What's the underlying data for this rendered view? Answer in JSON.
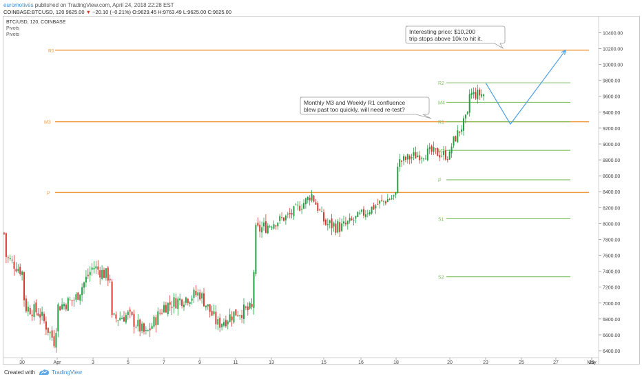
{
  "header": {
    "author": "euromotives",
    "published": " published on TradingView.com, April 24, 2018 22:28 EST",
    "symbol_line_a": "COINBASE:BTCUSD, 120  9625.00 ",
    "symbol_line_arrow": "▼",
    "symbol_line_change": " −20.10 (−0.21%) ",
    "symbol_line_ohlc": "O:9629.45 H:9763.49 L:9625.00 C:9625.00"
  },
  "legend": {
    "symbol": "BTC/USD, 120, COINBASE",
    "indicator_1": "Pivots",
    "indicator_2": "Pivots"
  },
  "annotations": {
    "note_1": [
      "Interesting price: $10,200",
      "trip stops above 10k to hit it."
    ],
    "note_2": [
      "Monthly M3 and Weekly R1 confluence",
      "blew past too quickly, will need re-test?"
    ]
  },
  "footer": {
    "created_with": "Created with",
    "brand": "TradingView"
  },
  "colors": {
    "bull": "#26a045",
    "bear": "#d33b32",
    "monthly_pivot": "#f0993a",
    "weekly_pivot": "#7bbf5d",
    "projection": "#4a9ee8"
  },
  "chart_data": {
    "type": "candlestick",
    "title": "BTC/USD, 120, COINBASE",
    "ylim": [
      6300,
      10600
    ],
    "y_ticks": [
      6400,
      6600,
      6800,
      7000,
      7200,
      7400,
      7600,
      7800,
      8000,
      8200,
      8400,
      8600,
      8800,
      9000,
      9200,
      9400,
      9600,
      9800,
      10000,
      10200,
      10400
    ],
    "x_ticks": [
      "30",
      "Apr",
      "3",
      "5",
      "7",
      "9",
      "11",
      "13",
      "15",
      "16",
      "18",
      "20",
      "23",
      "25",
      "27",
      "29",
      "May"
    ],
    "close_path": [
      {
        "date": "Mar 29",
        "price": 7880
      },
      {
        "date": "Mar 29",
        "price": 7580
      },
      {
        "date": "Mar 30",
        "price": 7400
      },
      {
        "date": "Mar 30",
        "price": 6950
      },
      {
        "date": "Mar 31",
        "price": 6880
      },
      {
        "date": "Apr 1",
        "price": 6500
      },
      {
        "date": "Apr 1",
        "price": 6950
      },
      {
        "date": "Apr 2",
        "price": 7050
      },
      {
        "date": "Apr 3",
        "price": 7460
      },
      {
        "date": "Apr 4",
        "price": 7320
      },
      {
        "date": "Apr 4",
        "price": 6780
      },
      {
        "date": "Apr 5",
        "price": 6850
      },
      {
        "date": "Apr 6",
        "price": 6600
      },
      {
        "date": "Apr 7",
        "price": 6960
      },
      {
        "date": "Apr 8",
        "price": 7050
      },
      {
        "date": "Apr 9",
        "price": 7120
      },
      {
        "date": "Apr 10",
        "price": 6730
      },
      {
        "date": "Apr 11",
        "price": 6880
      },
      {
        "date": "Apr 12",
        "price": 6920
      },
      {
        "date": "Apr 12",
        "price": 7900
      },
      {
        "date": "Apr 13",
        "price": 8000
      },
      {
        "date": "Apr 14",
        "price": 8100
      },
      {
        "date": "Apr 15",
        "price": 8300
      },
      {
        "date": "Apr 15",
        "price": 8370
      },
      {
        "date": "Apr 16",
        "price": 8000
      },
      {
        "date": "Apr 17",
        "price": 7950
      },
      {
        "date": "Apr 18",
        "price": 8100
      },
      {
        "date": "Apr 19",
        "price": 8250
      },
      {
        "date": "Apr 20",
        "price": 8350
      },
      {
        "date": "Apr 20",
        "price": 8750
      },
      {
        "date": "Apr 21",
        "price": 8850
      },
      {
        "date": "Apr 22",
        "price": 8900
      },
      {
        "date": "Apr 23",
        "price": 8850
      },
      {
        "date": "Apr 23",
        "price": 9000
      },
      {
        "date": "Apr 24",
        "price": 9350
      },
      {
        "date": "Apr 24",
        "price": 9625
      }
    ],
    "monthly_pivots": [
      {
        "label": "R1",
        "value": 10180
      },
      {
        "label": "M3",
        "value": 9280
      },
      {
        "label": "P",
        "value": 8390
      }
    ],
    "weekly_pivots": [
      {
        "label": "R2",
        "value": 9770
      },
      {
        "label": "M4",
        "value": 9525
      },
      {
        "label": "R1",
        "value": 9280
      },
      {
        "label": "M3",
        "value": 8920
      },
      {
        "label": "P",
        "value": 8550
      },
      {
        "label": "S1",
        "value": 8060
      },
      {
        "label": "S2",
        "value": 7330
      }
    ],
    "projection_path": [
      {
        "date": "Apr 25",
        "price": 9770
      },
      {
        "date": "Apr 26",
        "price": 9250
      },
      {
        "date": "Apr 30",
        "price": 10180
      }
    ]
  }
}
